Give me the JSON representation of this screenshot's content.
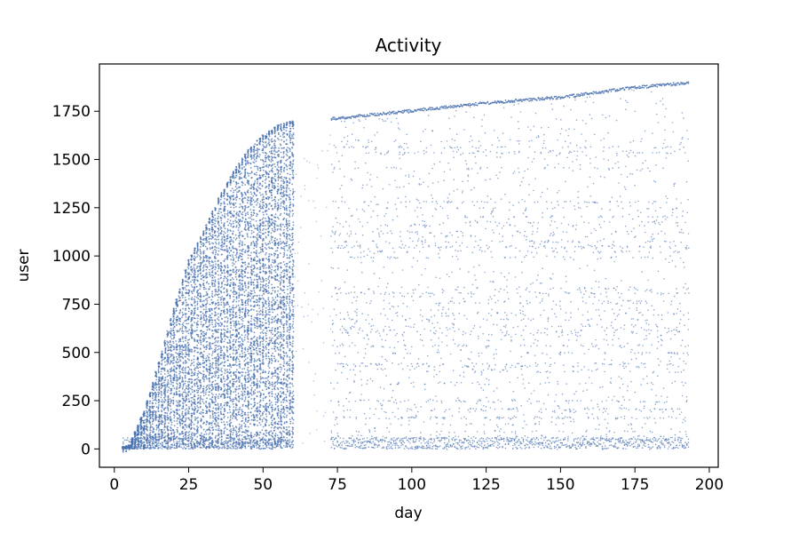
{
  "chart_data": {
    "type": "scatter",
    "title": "Activity",
    "xlabel": "day",
    "ylabel": "user",
    "xlim": [
      -5,
      203
    ],
    "ylim": [
      -95,
      1995
    ],
    "xticks": [
      0,
      25,
      50,
      75,
      100,
      125,
      150,
      175,
      200
    ],
    "yticks": [
      0,
      250,
      500,
      750,
      1000,
      1250,
      1500,
      1750
    ],
    "xtick_labels": [
      "0",
      "25",
      "50",
      "75",
      "100",
      "125",
      "150",
      "175",
      "200"
    ],
    "ytick_labels": [
      "0",
      "250",
      "500",
      "750",
      "1000",
      "1250",
      "1500",
      "1750"
    ],
    "grid": false,
    "marker_color": "#4a72b0",
    "series": [
      {
        "description_points": "dense user activity events; approx. frontier of first-activity day per user",
        "frontier": [
          {
            "day": 0,
            "user": 0
          },
          {
            "day": 5,
            "user": 20
          },
          {
            "day": 10,
            "user": 200
          },
          {
            "day": 15,
            "user": 450
          },
          {
            "day": 20,
            "user": 730
          },
          {
            "day": 25,
            "user": 980
          },
          {
            "day": 30,
            "user": 1130
          },
          {
            "day": 35,
            "user": 1300
          },
          {
            "day": 40,
            "user": 1440
          },
          {
            "day": 45,
            "user": 1550
          },
          {
            "day": 50,
            "user": 1630
          },
          {
            "day": 55,
            "user": 1680
          },
          {
            "day": 60,
            "user": 1700
          },
          {
            "day": 75,
            "user": 1720
          },
          {
            "day": 100,
            "user": 1760
          },
          {
            "day": 125,
            "user": 1800
          },
          {
            "day": 150,
            "user": 1830
          },
          {
            "day": 175,
            "user": 1880
          },
          {
            "day": 193,
            "user": 1905
          }
        ],
        "dense_until_day": 60,
        "sparse_gap_days": [
          60,
          73
        ],
        "max_day": 193
      }
    ]
  }
}
